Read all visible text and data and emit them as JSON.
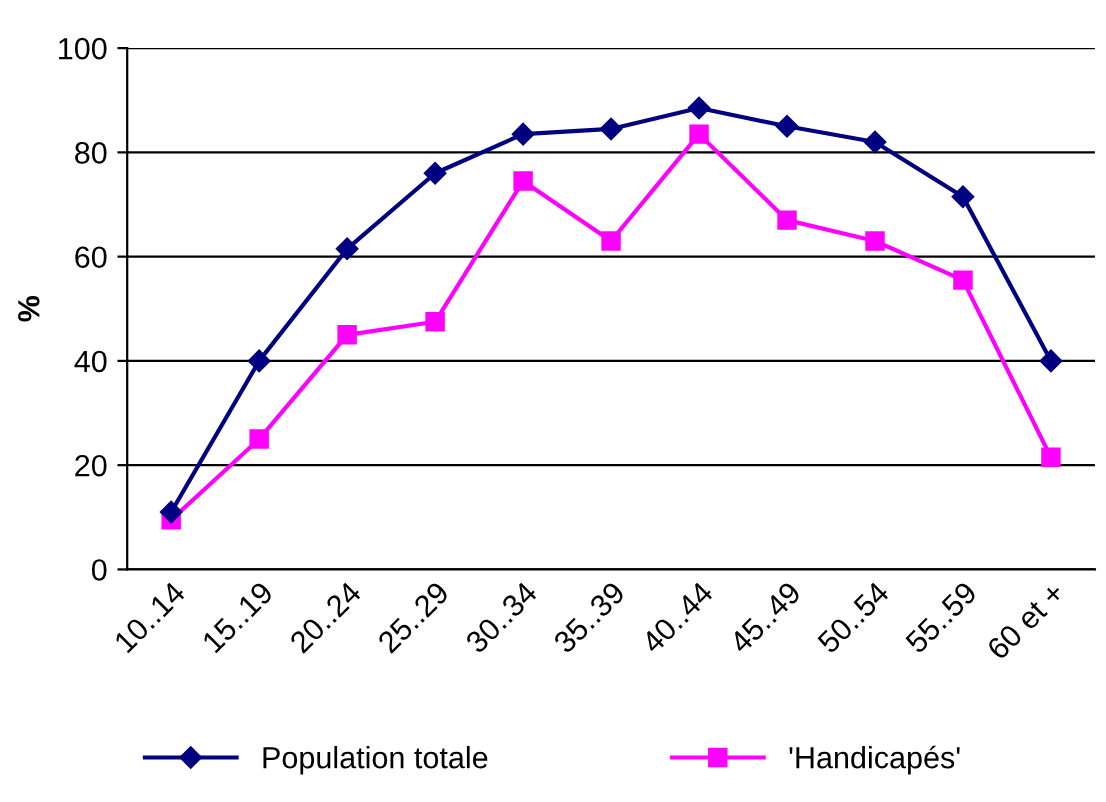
{
  "chart_data": {
    "type": "line",
    "ylabel": "%",
    "categories": [
      "10..14",
      "15..19",
      "20..24",
      "25..29",
      "30..34",
      "35..39",
      "40..44",
      "45..49",
      "50..54",
      "55..59",
      "60 et +"
    ],
    "series": [
      {
        "name": "Population totale",
        "color": "#000080",
        "marker": "diamond",
        "values": [
          11,
          40,
          61.5,
          76,
          83.5,
          84.5,
          88.5,
          85,
          82,
          71.5,
          40
        ]
      },
      {
        "name": "'Handicapés'",
        "color": "#ff00ff",
        "marker": "square",
        "values": [
          9.5,
          25,
          45,
          47.5,
          74.5,
          63,
          83.5,
          67,
          63,
          55.5,
          21.5
        ]
      }
    ],
    "ylim": [
      0,
      100
    ],
    "yticks": [
      0,
      20,
      40,
      60,
      80,
      100
    ],
    "grid": "y",
    "legend": "bottom"
  }
}
